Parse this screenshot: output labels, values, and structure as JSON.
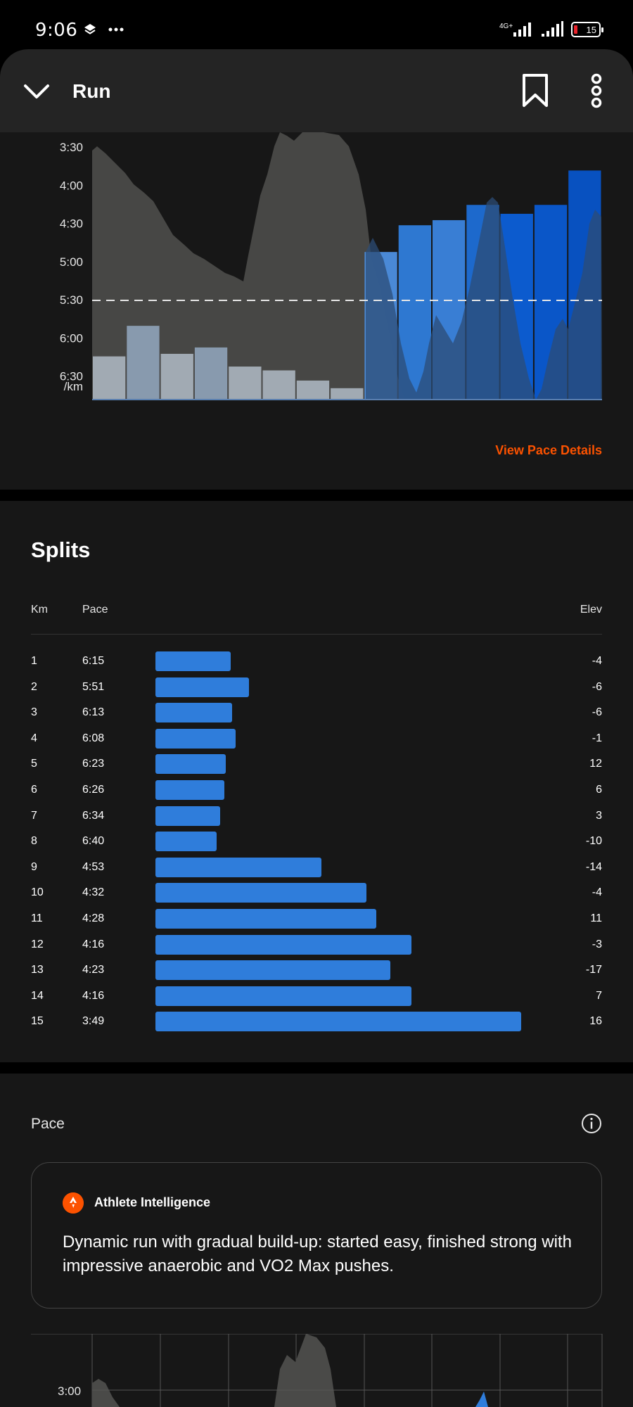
{
  "status_bar": {
    "time": "9:06",
    "network": "4G+",
    "battery": "15"
  },
  "header": {
    "title": "Run",
    "icons": [
      "chevron-down-icon",
      "bookmark-icon",
      "more-vertical-icon"
    ]
  },
  "pace_chart": {
    "y_ticks": [
      "3:30",
      "4:00",
      "4:30",
      "5:00",
      "5:30",
      "6:00",
      "6:30"
    ],
    "unit": "/km",
    "average_pace": "5:31",
    "link": "View Pace Details"
  },
  "chart_data": {
    "type": "bar",
    "categories": [
      "1",
      "2",
      "3",
      "4",
      "5",
      "6",
      "7",
      "8",
      "9",
      "10",
      "11",
      "12",
      "13",
      "14",
      "15"
    ],
    "values": [
      "6:15",
      "5:51",
      "6:13",
      "6:08",
      "6:23",
      "6:26",
      "6:34",
      "6:40",
      "4:53",
      "4:32",
      "4:28",
      "4:16",
      "4:23",
      "4:16",
      "3:49"
    ],
    "title": "",
    "xlabel": "",
    "ylabel": "/km",
    "ylim": [
      "7:00",
      "3:30"
    ],
    "colors": {
      "easy": [
        "#a9b3bd",
        "#8ea2b7",
        "#a9b3bd",
        "#8ea2b7",
        "#a9b3bd",
        "#a9b3bd",
        "#a9b3bd",
        "#a9b3bd"
      ],
      "fast": [
        "#4d8fe0",
        "#2f7ddb",
        "#3b84de",
        "#1e6ed6",
        "#0c5fd8",
        "#0a5ad2",
        "#0754c9"
      ],
      "elevation_fill": "#4a4a48",
      "average_line": "#e6e6e6"
    }
  },
  "splits": {
    "title": "Splits",
    "headers": {
      "km": "Km",
      "pace": "Pace",
      "elev": "Elev"
    },
    "rows": [
      {
        "km": "1",
        "pace": "6:15",
        "elev": "-4"
      },
      {
        "km": "2",
        "pace": "5:51",
        "elev": "-6"
      },
      {
        "km": "3",
        "pace": "6:13",
        "elev": "-6"
      },
      {
        "km": "4",
        "pace": "6:08",
        "elev": "-1"
      },
      {
        "km": "5",
        "pace": "6:23",
        "elev": "12"
      },
      {
        "km": "6",
        "pace": "6:26",
        "elev": "6"
      },
      {
        "km": "7",
        "pace": "6:34",
        "elev": "3"
      },
      {
        "km": "8",
        "pace": "6:40",
        "elev": "-10"
      },
      {
        "km": "9",
        "pace": "4:53",
        "elev": "-14"
      },
      {
        "km": "10",
        "pace": "4:32",
        "elev": "-4"
      },
      {
        "km": "11",
        "pace": "4:28",
        "elev": "11"
      },
      {
        "km": "12",
        "pace": "4:16",
        "elev": "-3"
      },
      {
        "km": "13",
        "pace": "4:23",
        "elev": "-17"
      },
      {
        "km": "14",
        "pace": "4:16",
        "elev": "7"
      },
      {
        "km": "15",
        "pace": "3:49",
        "elev": "16"
      }
    ]
  },
  "pace_section": {
    "label": "Pace",
    "ai_title": "Athlete Intelligence",
    "ai_text": "Dynamic run with gradual build-up: started easy, finished strong with impressive anaerobic and VO2 Max pushes.",
    "bottom_tick": "3:00"
  }
}
